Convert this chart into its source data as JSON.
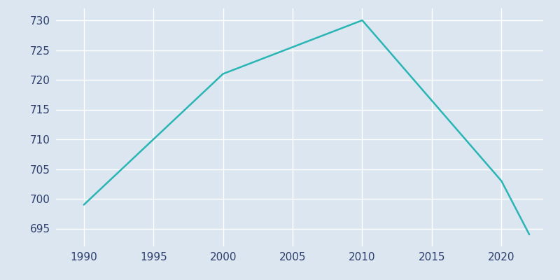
{
  "x": [
    1990,
    2000,
    2010,
    2020,
    2022
  ],
  "y": [
    699,
    721,
    730,
    703,
    694
  ],
  "line_color": "#2ab5b5",
  "background_color": "#dce6f0",
  "grid_color": "#ffffff",
  "xlim": [
    1988,
    2023
  ],
  "ylim": [
    692,
    732
  ],
  "xticks": [
    1990,
    1995,
    2000,
    2005,
    2010,
    2015,
    2020
  ],
  "yticks": [
    695,
    700,
    705,
    710,
    715,
    720,
    725,
    730
  ],
  "tick_label_color": "#2c3e6b",
  "tick_fontsize": 11,
  "linewidth": 1.8
}
